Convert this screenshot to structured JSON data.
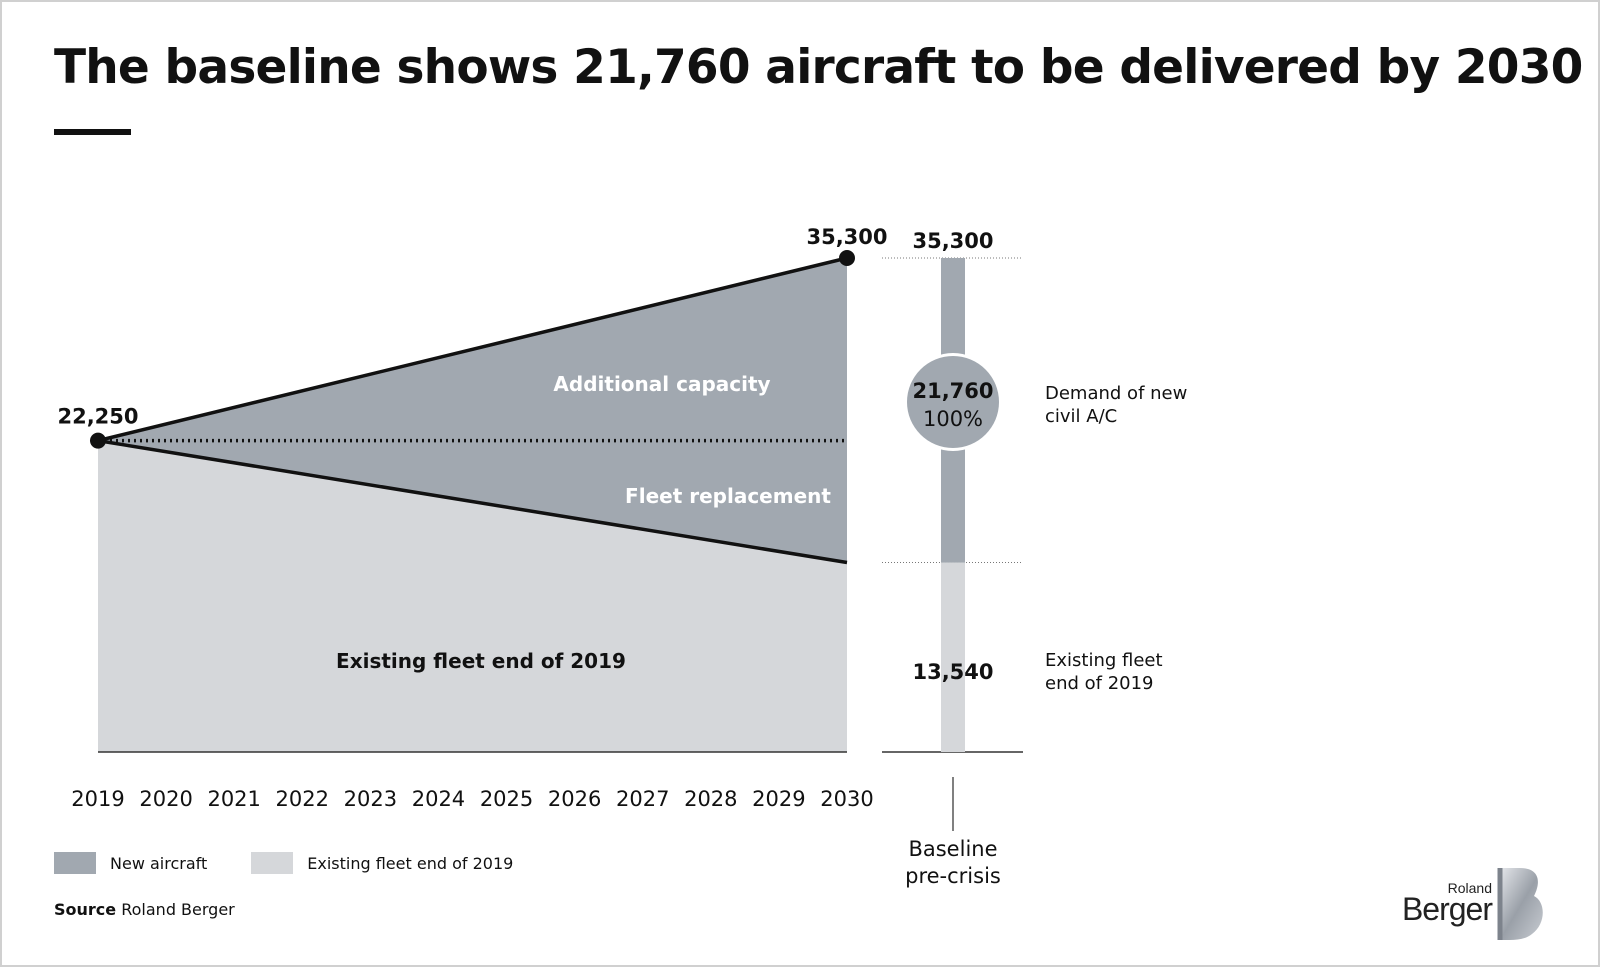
{
  "title": "The baseline shows 21,760 aircraft to be delivered by 2030",
  "colors": {
    "new_aircraft": "#a1a8b0",
    "existing_fleet": "#d5d7da",
    "line": "#111111",
    "text": "#111111",
    "white_label": "#ffffff"
  },
  "chart_data": [
    {
      "type": "area",
      "x": [
        "2019",
        "2020",
        "2021",
        "2022",
        "2023",
        "2024",
        "2025",
        "2026",
        "2027",
        "2028",
        "2029",
        "2030"
      ],
      "series": [
        {
          "name": "Existing fleet end of 2019",
          "start_value": 22250,
          "end_value": 13540
        },
        {
          "name": "New aircraft",
          "start_value": 0,
          "end_value": 21760
        }
      ],
      "total": {
        "start_value": 22250,
        "end_value": 35300
      },
      "reference_line": {
        "style": "dotted",
        "value": 22250
      },
      "ylim": [
        0,
        35300
      ],
      "point_labels": {
        "start": "22,250",
        "end": "35,300"
      },
      "area_labels": {
        "additional_capacity": "Additional capacity",
        "fleet_replacement": "Fleet replacement",
        "existing_fleet": "Existing fleet end of 2019"
      }
    },
    {
      "type": "bar",
      "categories": [
        "Baseline pre-crisis"
      ],
      "category_label_lines": [
        "Baseline",
        "pre-crisis"
      ],
      "segments": [
        {
          "name": "Existing fleet end of 2019",
          "value": 13540,
          "label": "13,540",
          "side_label_lines": [
            "Existing fleet",
            "end of 2019"
          ]
        },
        {
          "name": "Demand of new civil A/C",
          "value": 21760,
          "label": "21,760",
          "share_label": "100%",
          "side_label_lines": [
            "Demand of new",
            "civil A/C"
          ]
        }
      ],
      "total_label": "35,300"
    }
  ],
  "legend": [
    {
      "label": "New aircraft",
      "color": "#a1a8b0"
    },
    {
      "label": "Existing fleet end of 2019",
      "color": "#d5d7da"
    }
  ],
  "source": {
    "prefix": "Source",
    "text": "Roland Berger"
  },
  "logo": {
    "small": "Roland",
    "big": "Berger"
  }
}
